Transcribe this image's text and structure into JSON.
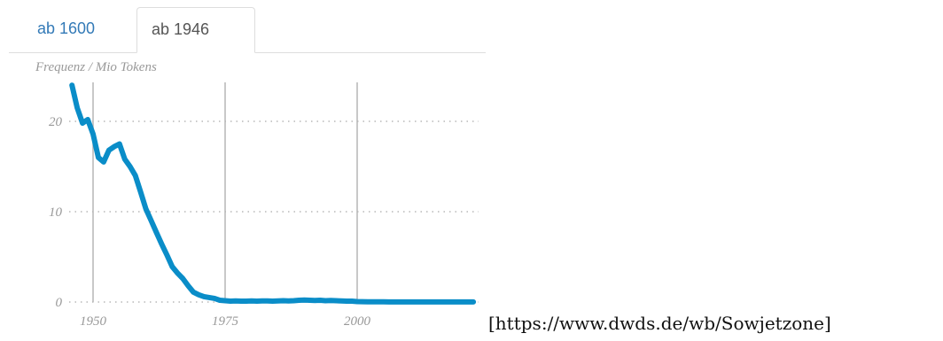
{
  "tabs": [
    {
      "label": "ab 1600",
      "active": false
    },
    {
      "label": "ab 1946",
      "active": true
    }
  ],
  "source_url": "[https://www.dwds.de/wb/Sowjetzone]",
  "colors": {
    "line": "#0a8dc8",
    "tab_link": "#337ab7",
    "axis_text": "#999999"
  },
  "chart_data": {
    "type": "line",
    "title": "",
    "ylabel": "Frequenz / Mio Tokens",
    "xlabel": "",
    "xlim": [
      1946,
      2022
    ],
    "ylim": [
      0,
      24
    ],
    "x_ticks": [
      1950,
      1975,
      2000
    ],
    "y_ticks": [
      0,
      10,
      20
    ],
    "grid": {
      "x": "solid",
      "y": "dotted"
    },
    "series": [
      {
        "x": [
          1946,
          1947,
          1948,
          1949,
          1950,
          1951,
          1952,
          1953,
          1954,
          1955,
          1956,
          1957,
          1958,
          1959,
          1960,
          1961,
          1962,
          1963,
          1964,
          1965,
          1966,
          1967,
          1968,
          1969,
          1970,
          1971,
          1972,
          1973,
          1974,
          1975,
          1976,
          1977,
          1978,
          1979,
          1980,
          1981,
          1982,
          1983,
          1984,
          1985,
          1986,
          1987,
          1988,
          1989,
          1990,
          1991,
          1992,
          1993,
          1994,
          1995,
          1996,
          1997,
          1998,
          1999,
          2000,
          2001,
          2002,
          2003,
          2004,
          2005,
          2006,
          2007,
          2008,
          2009,
          2010,
          2011,
          2012,
          2013,
          2014,
          2015,
          2016,
          2017,
          2018,
          2019,
          2020,
          2021,
          2022
        ],
        "values": [
          24.0,
          21.5,
          19.8,
          20.2,
          18.6,
          16.0,
          15.5,
          16.8,
          17.2,
          17.5,
          15.8,
          15.0,
          14.0,
          12.2,
          10.3,
          9.0,
          7.7,
          6.4,
          5.2,
          3.9,
          3.2,
          2.6,
          1.8,
          1.1,
          0.8,
          0.6,
          0.5,
          0.4,
          0.2,
          0.15,
          0.1,
          0.12,
          0.1,
          0.1,
          0.12,
          0.1,
          0.12,
          0.13,
          0.1,
          0.12,
          0.15,
          0.13,
          0.15,
          0.2,
          0.22,
          0.2,
          0.18,
          0.2,
          0.15,
          0.18,
          0.15,
          0.12,
          0.1,
          0.1,
          0.05,
          0.04,
          0.03,
          0.02,
          0.02,
          0.02,
          0.01,
          0.01,
          0.01,
          0.01,
          0.01,
          0.01,
          0.01,
          0.01,
          0.01,
          0.01,
          0.01,
          0.01,
          0.01,
          0.01,
          0.01,
          0.01,
          0.01
        ]
      }
    ]
  }
}
